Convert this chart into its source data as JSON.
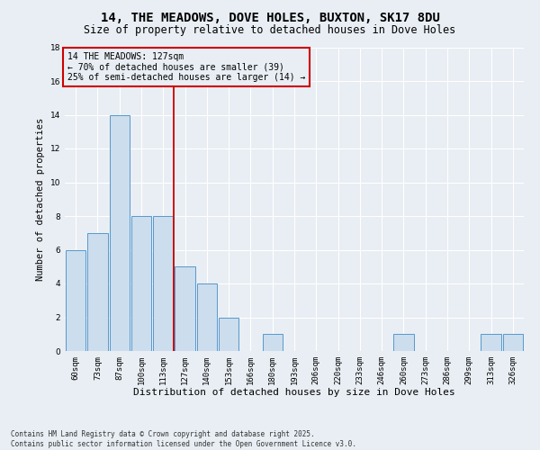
{
  "title1": "14, THE MEADOWS, DOVE HOLES, BUXTON, SK17 8DU",
  "title2": "Size of property relative to detached houses in Dove Holes",
  "xlabel": "Distribution of detached houses by size in Dove Holes",
  "ylabel": "Number of detached properties",
  "bar_labels": [
    "60sqm",
    "73sqm",
    "87sqm",
    "100sqm",
    "113sqm",
    "127sqm",
    "140sqm",
    "153sqm",
    "166sqm",
    "180sqm",
    "193sqm",
    "206sqm",
    "220sqm",
    "233sqm",
    "246sqm",
    "260sqm",
    "273sqm",
    "286sqm",
    "299sqm",
    "313sqm",
    "326sqm"
  ],
  "bar_values": [
    6,
    7,
    14,
    8,
    8,
    5,
    4,
    2,
    0,
    1,
    0,
    0,
    0,
    0,
    0,
    1,
    0,
    0,
    0,
    1,
    1
  ],
  "bar_color": "#ccdded",
  "bar_edgecolor": "#5599cc",
  "vline_color": "#cc0000",
  "annotation_box_color": "#cc0000",
  "annotation_fontsize": 7,
  "ylim": [
    0,
    18
  ],
  "yticks": [
    0,
    2,
    4,
    6,
    8,
    10,
    12,
    14,
    16,
    18
  ],
  "footnote": "Contains HM Land Registry data © Crown copyright and database right 2025.\nContains public sector information licensed under the Open Government Licence v3.0.",
  "bg_color": "#e8eef4",
  "grid_color": "#ffffff",
  "title1_fontsize": 10,
  "title2_fontsize": 8.5,
  "ylabel_fontsize": 7.5,
  "xlabel_fontsize": 8,
  "tick_fontsize": 6.5,
  "footnote_fontsize": 5.5
}
